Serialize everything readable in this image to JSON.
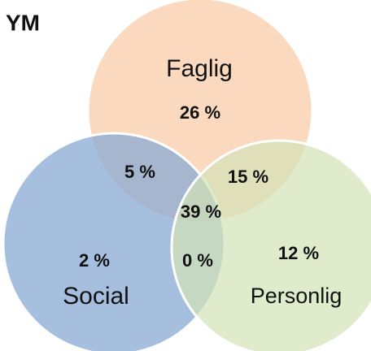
{
  "title": "YM",
  "sets": [
    {
      "label": "Faglig"
    },
    {
      "label": "Social"
    },
    {
      "label": "Personlig"
    }
  ],
  "regions": [
    {
      "label": "26 %"
    },
    {
      "label": "5 %"
    },
    {
      "label": "15 %"
    },
    {
      "label": "39 %"
    },
    {
      "label": "2 %"
    },
    {
      "label": "0 %"
    },
    {
      "label": "12 %"
    }
  ]
}
